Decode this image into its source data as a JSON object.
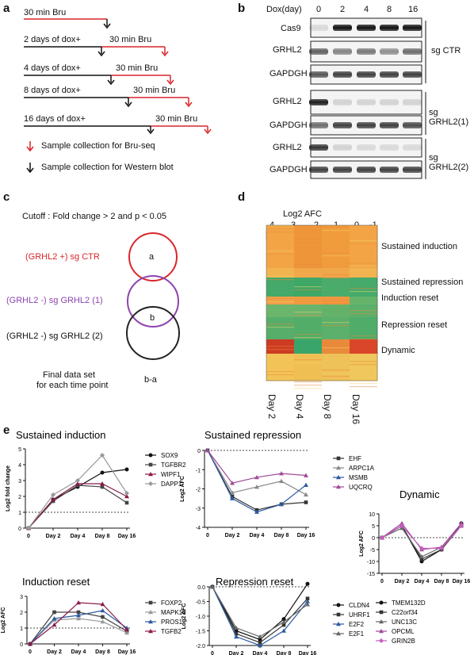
{
  "panel_labels": {
    "a": "a",
    "b": "b",
    "c": "c",
    "d": "d",
    "e": "e"
  },
  "panel_a": {
    "rows": [
      {
        "first": "30 min Bru",
        "second": ""
      },
      {
        "first": "2 days of dox+",
        "second": "30 min Bru"
      },
      {
        "first": "4 days of dox+",
        "second": "30 min Bru"
      },
      {
        "first": "8 days of dox+",
        "second": "30 min Bru"
      },
      {
        "first": "16 days of dox+",
        "second": "30 min Bru"
      }
    ],
    "legend_red": "Sample collection for Bru-seq",
    "legend_black": "Sample collection for Western blot",
    "colors": {
      "red": "#d9262b",
      "black": "#111111"
    }
  },
  "panel_b": {
    "dox_label": "Dox(day)",
    "days": [
      "0",
      "2",
      "4",
      "8",
      "16"
    ],
    "blot_rows": [
      "Cas9",
      "GRHL2",
      "GAPDGH",
      "GRHL2",
      "GAPDGH",
      "GRHL2",
      "GAPDGH"
    ],
    "groups": [
      "sg CTR",
      "sg GRHL2(1)",
      "sg GRHL2(2)"
    ]
  },
  "panel_c": {
    "cutoff": "Cutoff : Fold change > 2 and p < 0.05",
    "circles": [
      {
        "label": "(GRHL2 +)  sg CTR",
        "letter": "a",
        "color": "#d9262b"
      },
      {
        "label": "(GRHL2 -)  sg GRHL2 (1)",
        "letter": "b",
        "color": "#8e44b0"
      },
      {
        "label": "(GRHL2 -)  sg GRHL2 (2)",
        "letter": "",
        "color": "#222222"
      }
    ],
    "final_line1": "Final data set",
    "final_line2": "for each time point",
    "final_value": "b-a"
  },
  "panel_d": {
    "colorbar_title": "Log2 AFC",
    "colorbar_ticks": [
      "4",
      "3",
      "2",
      "1",
      "0",
      "-1"
    ],
    "columns": [
      "Day 2",
      "Day 4",
      "Day 8",
      "Day 16"
    ],
    "row_labels": [
      "Sustained induction",
      "Sustained repression",
      "Induction reset",
      "Repression reset",
      "Dynamic"
    ]
  },
  "chart_data": [
    {
      "type": "line",
      "title": "Sustained induction",
      "ylabel": "Log2 fold change",
      "categories": [
        "0",
        "Day 2",
        "Day 4",
        "Day 8",
        "Day 16"
      ],
      "ylim": [
        0,
        5
      ],
      "yticks": [
        "0",
        "1",
        "2",
        "3",
        "4",
        "5"
      ],
      "reference_line": 1,
      "series": [
        {
          "name": "SOX9",
          "values": [
            0,
            1.8,
            2.6,
            3.5,
            3.7
          ],
          "color": "#111111",
          "marker": "circle"
        },
        {
          "name": "TGFBR2",
          "values": [
            0,
            1.7,
            2.7,
            2.6,
            1.6
          ],
          "color": "#444444",
          "marker": "square"
        },
        {
          "name": "WIPF1",
          "values": [
            0,
            1.8,
            2.8,
            2.8,
            2.0
          ],
          "color": "#8b1a4a",
          "marker": "triangle"
        },
        {
          "name": "DAPP1",
          "values": [
            0,
            2.1,
            3.0,
            4.6,
            2.2
          ],
          "color": "#999999",
          "marker": "diamond"
        }
      ]
    },
    {
      "type": "line",
      "title": "Sustained repression",
      "ylabel": "Log2 AFC",
      "categories": [
        "0",
        "Day 2",
        "Day 4",
        "Day 8",
        "Day 16"
      ],
      "ylim": [
        -4,
        0
      ],
      "yticks": [
        "0",
        "-1",
        "-2",
        "-3",
        "-4"
      ],
      "reference_line": 0,
      "series": [
        {
          "name": "EHF",
          "values": [
            0,
            -2.4,
            -3.1,
            -2.8,
            -2.7
          ],
          "color": "#333333",
          "marker": "square"
        },
        {
          "name": "ARPC1A",
          "values": [
            0,
            -2.2,
            -1.9,
            -1.6,
            -2.3
          ],
          "color": "#888888",
          "marker": "triangle"
        },
        {
          "name": "MSMB",
          "values": [
            0,
            -2.5,
            -3.2,
            -2.8,
            -1.8
          ],
          "color": "#2c5aa0",
          "marker": "triangle"
        },
        {
          "name": "UQCRQ",
          "values": [
            0,
            -1.7,
            -1.4,
            -1.2,
            -1.3
          ],
          "color": "#a04a9a",
          "marker": "triangle"
        }
      ]
    },
    {
      "type": "line",
      "title": "Dynamic",
      "ylabel": "Log2 AFC",
      "categories": [
        "0",
        "Day 2",
        "Day 4",
        "Day 8",
        "Day 16"
      ],
      "ylim": [
        -15,
        10
      ],
      "yticks": [
        "10",
        "5",
        "0",
        "-5",
        "-10",
        "-15"
      ],
      "reference_line": 0,
      "series": [
        {
          "name": "TMEM132D",
          "values": [
            0,
            5,
            -10,
            -5,
            6
          ],
          "color": "#111111",
          "marker": "circle"
        },
        {
          "name": "C22orf34",
          "values": [
            0,
            5,
            -9,
            -5,
            5
          ],
          "color": "#333333",
          "marker": "square"
        },
        {
          "name": "UNC13C",
          "values": [
            0,
            4,
            -8,
            -4,
            5
          ],
          "color": "#666666",
          "marker": "triangle"
        },
        {
          "name": "OPCML",
          "values": [
            0,
            6,
            -5,
            -4,
            6
          ],
          "color": "#a04a9a",
          "marker": "triangle"
        },
        {
          "name": "GRIN2B",
          "values": [
            0,
            5,
            -4.5,
            -4.5,
            5
          ],
          "color": "#c85cc0",
          "marker": "diamond"
        }
      ]
    },
    {
      "type": "line",
      "title": "Induction reset",
      "ylabel": "Log2 AFC",
      "categories": [
        "0",
        "Day 2",
        "Day 4",
        "Day 8",
        "Day 16"
      ],
      "ylim": [
        0,
        3
      ],
      "yticks": [
        "0",
        "1",
        "2",
        "3"
      ],
      "reference_line": 1,
      "series": [
        {
          "name": "FOXP2",
          "values": [
            0,
            2.0,
            2.0,
            1.7,
            0.8
          ],
          "color": "#444444",
          "marker": "square"
        },
        {
          "name": "MAPK10",
          "values": [
            0,
            1.5,
            1.6,
            1.4,
            0.7
          ],
          "color": "#999999",
          "marker": "triangle"
        },
        {
          "name": "PROS1",
          "values": [
            0,
            1.6,
            1.8,
            2.1,
            1.0
          ],
          "color": "#2c5aa0",
          "marker": "triangle"
        },
        {
          "name": "TGFB2",
          "values": [
            0,
            1.2,
            2.6,
            2.5,
            0.9
          ],
          "color": "#8b1a4a",
          "marker": "triangle"
        }
      ]
    },
    {
      "type": "line",
      "title": "Repression reset",
      "ylabel": "Log2 AFC",
      "categories": [
        "0",
        "Day 2",
        "Day 4",
        "Day 8",
        "Day 16"
      ],
      "ylim": [
        -2,
        0
      ],
      "yticks": [
        "0.0",
        "-0.5",
        "-1.0",
        "-1.5",
        "-2.0"
      ],
      "reference_line": 0,
      "series": [
        {
          "name": "CLDN4",
          "values": [
            0,
            -1.5,
            -1.8,
            -1.1,
            0.1
          ],
          "color": "#111111",
          "marker": "circle"
        },
        {
          "name": "UHRF1",
          "values": [
            0,
            -1.6,
            -1.9,
            -1.3,
            -0.4
          ],
          "color": "#333333",
          "marker": "square"
        },
        {
          "name": "E2F2",
          "values": [
            0,
            -1.7,
            -2.0,
            -1.5,
            -0.5
          ],
          "color": "#2c5aa0",
          "marker": "triangle"
        },
        {
          "name": "E2F1",
          "values": [
            0,
            -1.4,
            -1.7,
            -1.2,
            -0.6
          ],
          "color": "#666666",
          "marker": "triangle"
        }
      ]
    }
  ]
}
